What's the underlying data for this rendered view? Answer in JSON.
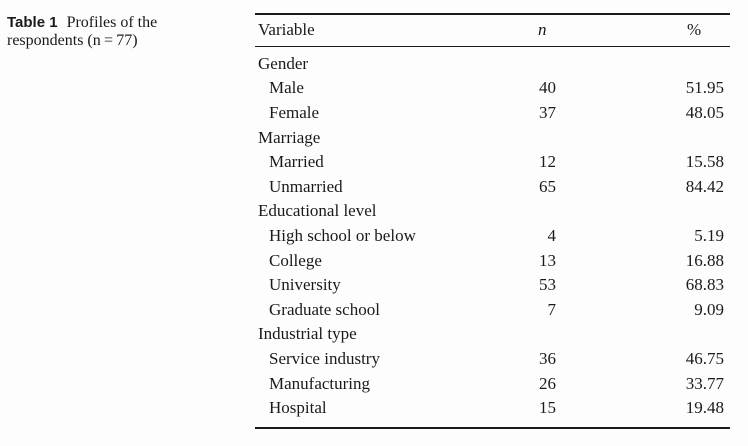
{
  "caption": {
    "label": "Table 1",
    "text": "Profiles of the respondents (n = 77)"
  },
  "table": {
    "headers": {
      "variable": "Variable",
      "n": "n",
      "pct": "%"
    },
    "groups": [
      {
        "label": "Gender",
        "items": [
          {
            "label": "Male",
            "n": "40",
            "pct": "51.95"
          },
          {
            "label": "Female",
            "n": "37",
            "pct": "48.05"
          }
        ]
      },
      {
        "label": "Marriage",
        "items": [
          {
            "label": "Married",
            "n": "12",
            "pct": "15.58"
          },
          {
            "label": "Unmarried",
            "n": "65",
            "pct": "84.42"
          }
        ]
      },
      {
        "label": "Educational level",
        "items": [
          {
            "label": "High school or below",
            "n": "4",
            "pct": "5.19"
          },
          {
            "label": "College",
            "n": "13",
            "pct": "16.88"
          },
          {
            "label": "University",
            "n": "53",
            "pct": "68.83"
          },
          {
            "label": "Graduate school",
            "n": "7",
            "pct": "9.09"
          }
        ]
      },
      {
        "label": "Industrial type",
        "items": [
          {
            "label": "Service industry",
            "n": "36",
            "pct": "46.75"
          },
          {
            "label": "Manufacturing",
            "n": "26",
            "pct": "33.77"
          },
          {
            "label": "Hospital",
            "n": "15",
            "pct": "19.48"
          }
        ]
      }
    ]
  },
  "colors": {
    "text": "#1a1a1a",
    "rule": "#1a1a1a",
    "background": "#fdfdfd"
  }
}
